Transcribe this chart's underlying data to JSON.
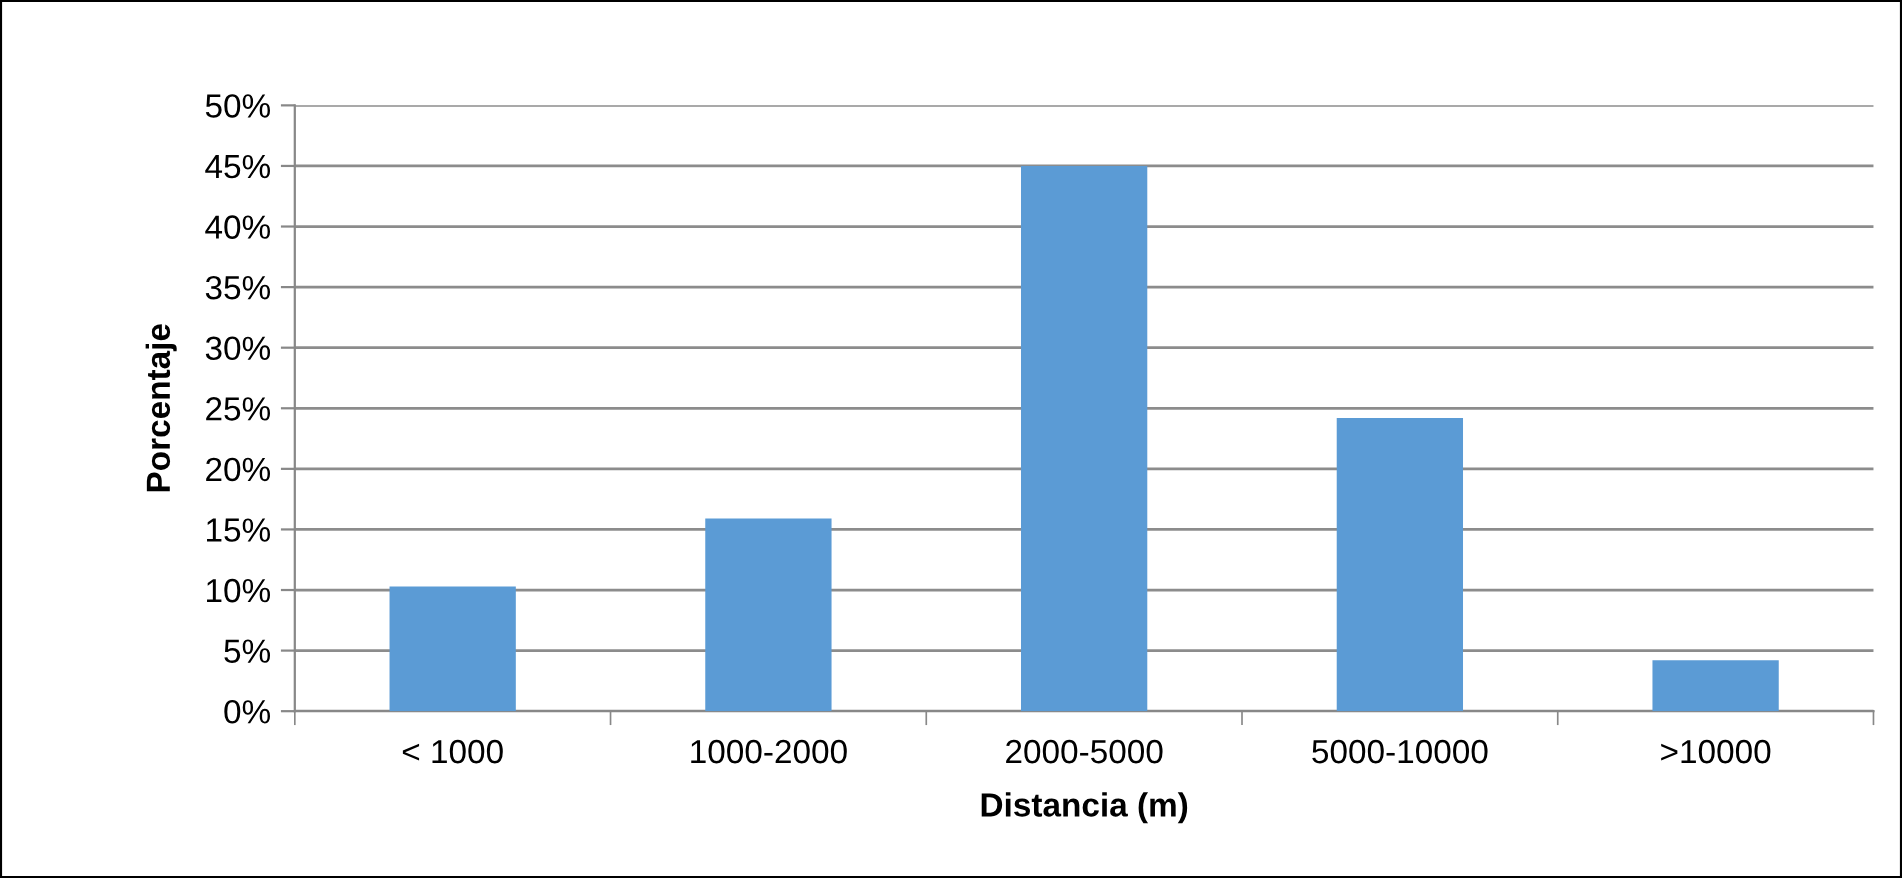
{
  "chart_data": {
    "type": "bar",
    "xlabel": "Distancia (m)",
    "ylabel": "Porcentaje",
    "categories": [
      "< 1000",
      "1000-2000",
      "2000-5000",
      "5000-10000",
      ">10000"
    ],
    "values": [
      10.3,
      15.9,
      45.0,
      24.2,
      4.2
    ],
    "color": "#5b9bd5",
    "ylim": [
      0,
      50
    ],
    "yticks": [
      {
        "value": 0,
        "label": "0%"
      },
      {
        "value": 5,
        "label": "5%"
      },
      {
        "value": 10,
        "label": "10%"
      },
      {
        "value": 15,
        "label": "15%"
      },
      {
        "value": 20,
        "label": "20%"
      },
      {
        "value": 25,
        "label": "25%"
      },
      {
        "value": 30,
        "label": "30%"
      },
      {
        "value": 35,
        "label": "35%"
      },
      {
        "value": 40,
        "label": "40%"
      },
      {
        "value": 45,
        "label": "45%"
      },
      {
        "value": 50,
        "label": "50%"
      }
    ],
    "grid": "y",
    "legend": false
  }
}
